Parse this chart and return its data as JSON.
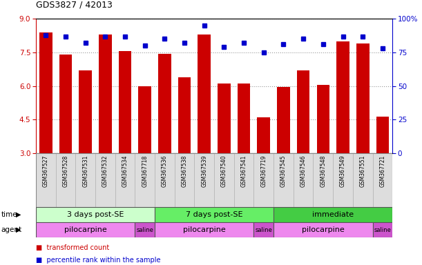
{
  "title": "GDS3827 / 42013",
  "samples": [
    "GSM367527",
    "GSM367528",
    "GSM367531",
    "GSM367532",
    "GSM367534",
    "GSM367718",
    "GSM367536",
    "GSM367538",
    "GSM367539",
    "GSM367540",
    "GSM367541",
    "GSM367719",
    "GSM367545",
    "GSM367546",
    "GSM367548",
    "GSM367549",
    "GSM367551",
    "GSM367721"
  ],
  "red_bars": [
    8.4,
    7.4,
    6.7,
    8.3,
    7.55,
    6.0,
    7.45,
    6.4,
    8.3,
    6.1,
    6.1,
    4.6,
    5.95,
    6.7,
    6.05,
    8.0,
    7.9,
    4.65
  ],
  "blue_dots": [
    88,
    87,
    82,
    87,
    87,
    80,
    85,
    82,
    95,
    79,
    82,
    75,
    81,
    85,
    81,
    87,
    87,
    78
  ],
  "ylim_left": [
    3,
    9
  ],
  "ylim_right": [
    0,
    100
  ],
  "yticks_left": [
    3,
    4.5,
    6,
    7.5,
    9
  ],
  "yticks_right": [
    0,
    25,
    50,
    75,
    100
  ],
  "ytick_labels_right": [
    "0",
    "25",
    "50",
    "75",
    "100%"
  ],
  "bar_color": "#cc0000",
  "dot_color": "#0000cc",
  "bar_bottom": 3,
  "time_groups": [
    {
      "label": "3 days post-SE",
      "start": 0,
      "end": 5,
      "color": "#ccffcc"
    },
    {
      "label": "7 days post-SE",
      "start": 6,
      "end": 11,
      "color": "#66ee66"
    },
    {
      "label": "immediate",
      "start": 12,
      "end": 17,
      "color": "#44cc44"
    }
  ],
  "agent_groups": [
    {
      "label": "pilocarpine",
      "start": 0,
      "end": 4,
      "color": "#ee88ee"
    },
    {
      "label": "saline",
      "start": 5,
      "end": 5,
      "color": "#cc55cc"
    },
    {
      "label": "pilocarpine",
      "start": 6,
      "end": 10,
      "color": "#ee88ee"
    },
    {
      "label": "saline",
      "start": 11,
      "end": 11,
      "color": "#cc55cc"
    },
    {
      "label": "pilocarpine",
      "start": 12,
      "end": 16,
      "color": "#ee88ee"
    },
    {
      "label": "saline",
      "start": 17,
      "end": 17,
      "color": "#cc55cc"
    }
  ],
  "legend_items": [
    {
      "label": "transformed count",
      "color": "#cc0000"
    },
    {
      "label": "percentile rank within the sample",
      "color": "#0000cc"
    }
  ],
  "grid_color": "#999999",
  "bg_color": "#ffffff",
  "plot_bg": "#ffffff",
  "axis_color_left": "#cc0000",
  "axis_color_right": "#0000cc",
  "label_bg": "#dddddd"
}
